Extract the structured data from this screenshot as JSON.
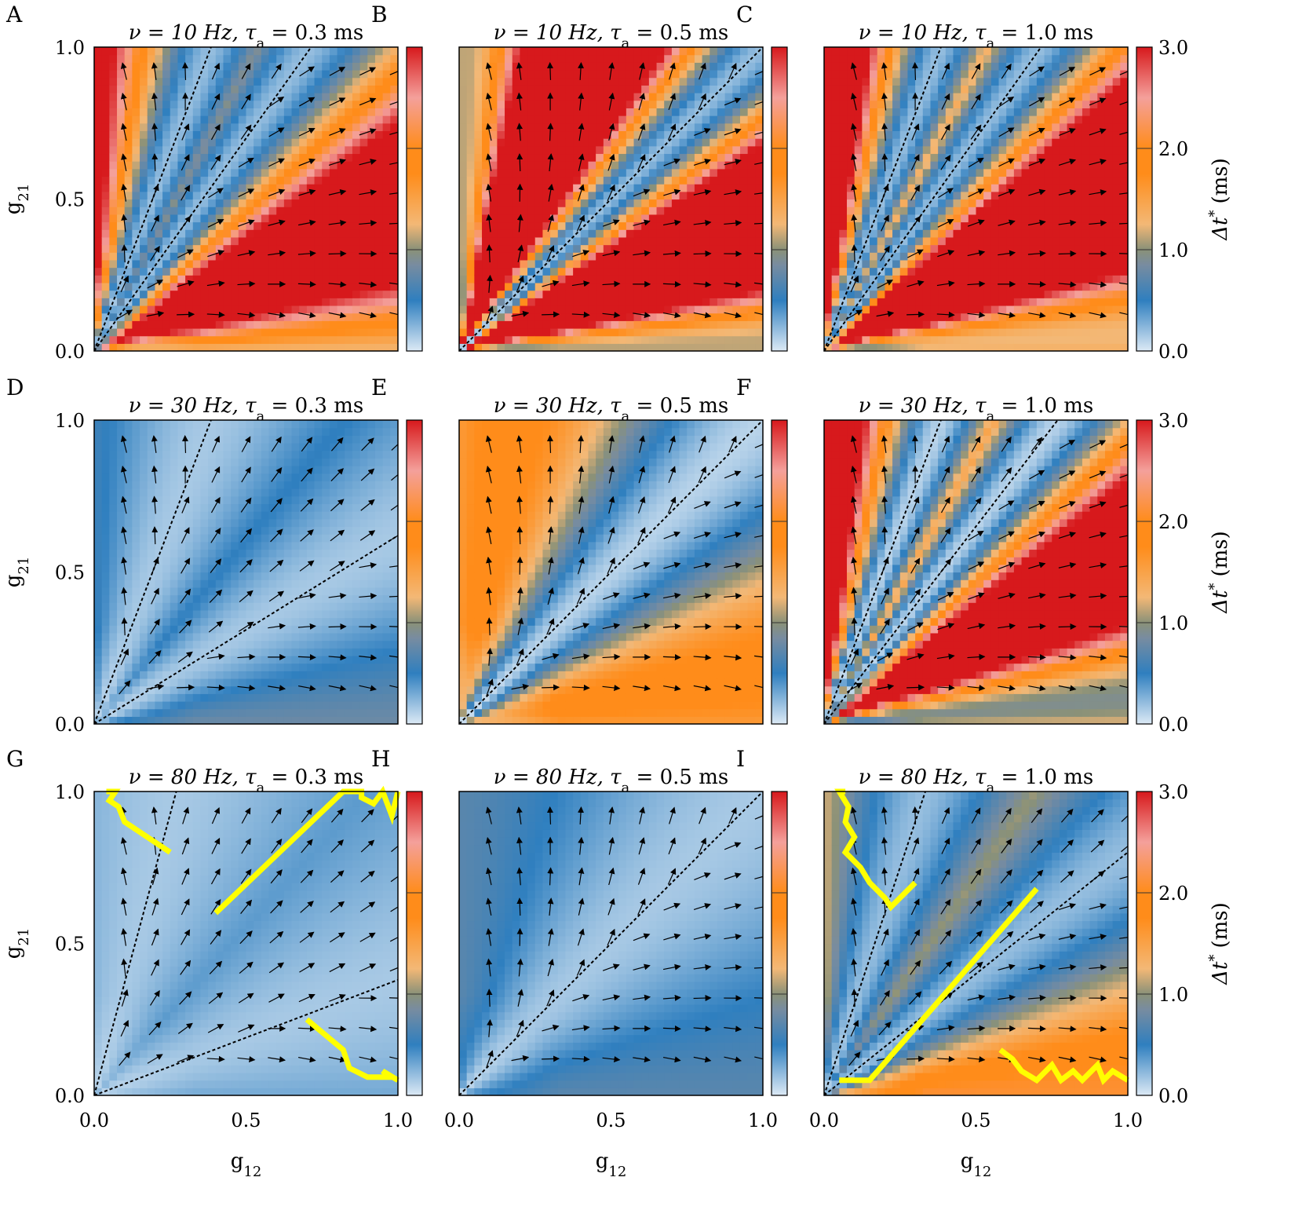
{
  "figure": {
    "x_axis_label": "g",
    "x_axis_label_sub": "12",
    "y_axis_label": "g",
    "y_axis_label_sub": "21",
    "colorbar_label": "Δt",
    "colorbar_label_sup": "*",
    "colorbar_unit": "(ms)",
    "colorbar_ticks": [
      "0.0",
      "1.0",
      "2.0",
      "3.0"
    ],
    "axis_ticks": [
      "0.0",
      "0.5",
      "1.0"
    ],
    "colors": {
      "deep_red": "#d7191c",
      "pink": "#f4a09b",
      "orange": "#ff8c1a",
      "tan": "#f3b876",
      "gray_olive": "#8a9178",
      "mid_blue": "#2f7fbf",
      "light_blue": "#dce9f5",
      "arrow": "#000000",
      "separatrix": "#000000",
      "trajectory": "#ffff00"
    }
  },
  "chart_data": [
    {
      "panel": "A",
      "nu": "ν = 10 Hz",
      "tau": "τa = 0.3 ms",
      "title_left": "ν = 10 Hz, τ",
      "title_sub": "a",
      "title_right": " = 0.3 ms",
      "type": "heatmap",
      "xlim": [
        0,
        1
      ],
      "ylim": [
        0,
        1
      ],
      "clim": [
        0,
        3
      ],
      "separatrix_slopes": [
        2.6,
        1.4
      ],
      "diagonal": false,
      "base": 2.5,
      "amp": 2.3,
      "period_deg": 30,
      "phase_deg": 0,
      "trajectories": []
    },
    {
      "panel": "B",
      "nu": "ν = 10 Hz",
      "tau": "τa = 0.5 ms",
      "title_left": "ν = 10 Hz, τ",
      "title_sub": "a",
      "title_right": " = 0.5 ms",
      "type": "heatmap",
      "xlim": [
        0,
        1
      ],
      "ylim": [
        0,
        1
      ],
      "clim": [
        0,
        3
      ],
      "separatrix_slopes": [
        1.0
      ],
      "diagonal": true,
      "base": 3.2,
      "amp": 3.0,
      "period_deg": 22,
      "phase_deg": 0,
      "trajectories": []
    },
    {
      "panel": "C",
      "nu": "ν = 10 Hz",
      "tau": "τa = 1.0 ms",
      "title_left": "ν = 10 Hz, τ",
      "title_sub": "a",
      "title_right": " = 1.0 ms",
      "type": "heatmap",
      "xlim": [
        0,
        1
      ],
      "ylim": [
        0,
        1
      ],
      "clim": [
        0,
        3
      ],
      "separatrix_slopes": [
        2.6,
        1.4
      ],
      "diagonal": false,
      "base": 3.2,
      "amp": 3.0,
      "period_deg": 26,
      "phase_deg": 0,
      "trajectories": []
    },
    {
      "panel": "D",
      "nu": "ν = 30 Hz",
      "tau": "τa = 0.3 ms",
      "title_left": "ν = 30 Hz, τ",
      "title_sub": "a",
      "title_right": " = 0.3 ms",
      "type": "heatmap",
      "xlim": [
        0,
        1
      ],
      "ylim": [
        0,
        1
      ],
      "clim": [
        0,
        3
      ],
      "separatrix_slopes": [
        2.6,
        0.62
      ],
      "diagonal": false,
      "base": 0.55,
      "amp": 0.4,
      "period_deg": 40,
      "phase_deg": 0,
      "trajectories": []
    },
    {
      "panel": "E",
      "nu": "ν = 30 Hz",
      "tau": "τa = 0.5 ms",
      "title_left": "ν = 30 Hz, τ",
      "title_sub": "a",
      "title_right": " = 0.5 ms",
      "type": "heatmap",
      "xlim": [
        0,
        1
      ],
      "ylim": [
        0,
        1
      ],
      "clim": [
        0,
        3
      ],
      "separatrix_slopes": [
        1.0
      ],
      "diagonal": true,
      "base": 1.1,
      "amp": 1.0,
      "period_deg": 36,
      "phase_deg": 0,
      "trajectories": []
    },
    {
      "panel": "F",
      "nu": "ν = 30 Hz",
      "tau": "τa = 1.0 ms",
      "title_left": "ν = 30 Hz, τ",
      "title_sub": "a",
      "title_right": " = 1.0 ms",
      "type": "heatmap",
      "xlim": [
        0,
        1
      ],
      "ylim": [
        0,
        1
      ],
      "clim": [
        0,
        3
      ],
      "separatrix_slopes": [
        2.6,
        1.3
      ],
      "diagonal": false,
      "base": 2.6,
      "amp": 2.5,
      "period_deg": 24,
      "phase_deg": 0,
      "trajectories": []
    },
    {
      "panel": "G",
      "nu": "ν = 80 Hz",
      "tau": "τa = 0.3 ms",
      "title_left": "ν = 80 Hz, τ",
      "title_sub": "a",
      "title_right": " = 0.3 ms",
      "type": "heatmap",
      "xlim": [
        0,
        1
      ],
      "ylim": [
        0,
        1
      ],
      "clim": [
        0,
        3
      ],
      "separatrix_slopes": [
        3.7,
        0.38
      ],
      "diagonal": false,
      "base": 0.4,
      "amp": 0.25,
      "period_deg": 60,
      "phase_deg": 0,
      "trajectories": [
        [
          [
            0.25,
            0.8
          ],
          [
            0.1,
            0.9
          ],
          [
            0.08,
            0.95
          ],
          [
            0.05,
            0.97
          ],
          [
            0.07,
            1.0
          ],
          [
            0.04,
            1.0
          ]
        ],
        [
          [
            0.4,
            0.6
          ],
          [
            0.82,
            1.0
          ],
          [
            0.88,
            1.0
          ],
          [
            0.88,
            0.98
          ],
          [
            0.92,
            0.96
          ],
          [
            0.95,
            1.0
          ],
          [
            0.98,
            0.92
          ],
          [
            1.0,
            1.0
          ]
        ],
        [
          [
            0.7,
            0.25
          ],
          [
            0.82,
            0.15
          ],
          [
            0.84,
            0.09
          ],
          [
            0.9,
            0.06
          ],
          [
            0.97,
            0.06
          ],
          [
            0.95,
            0.08
          ],
          [
            1.0,
            0.05
          ]
        ]
      ]
    },
    {
      "panel": "H",
      "nu": "ν = 80 Hz",
      "tau": "τa = 0.5 ms",
      "title_left": "ν = 80 Hz, τ",
      "title_sub": "a",
      "title_right": " = 0.5 ms",
      "type": "heatmap",
      "xlim": [
        0,
        1
      ],
      "ylim": [
        0,
        1
      ],
      "clim": [
        0,
        3
      ],
      "separatrix_slopes": [
        1.0
      ],
      "diagonal": true,
      "base": 0.5,
      "amp": 0.35,
      "period_deg": 55,
      "phase_deg": 0,
      "trajectories": []
    },
    {
      "panel": "I",
      "nu": "ν = 80 Hz",
      "tau": "τa = 1.0 ms",
      "title_left": "ν = 80 Hz, τ",
      "title_sub": "a",
      "title_right": " = 1.0 ms",
      "type": "heatmap",
      "xlim": [
        0,
        1
      ],
      "ylim": [
        0,
        1
      ],
      "clim": [
        0,
        3
      ],
      "separatrix_slopes": [
        3.0,
        0.8
      ],
      "diagonal": false,
      "base": 1.3,
      "amp": 1.1,
      "period_deg": 40,
      "phase_deg": 0,
      "trajectories": [
        [
          [
            0.07,
            1.0
          ],
          [
            0.05,
            1.0
          ],
          [
            0.08,
            0.95
          ],
          [
            0.07,
            0.9
          ],
          [
            0.1,
            0.85
          ],
          [
            0.07,
            0.8
          ],
          [
            0.12,
            0.75
          ],
          [
            0.15,
            0.7
          ],
          [
            0.2,
            0.65
          ],
          [
            0.22,
            0.62
          ],
          [
            0.3,
            0.7
          ]
        ],
        [
          [
            0.05,
            0.05
          ],
          [
            0.15,
            0.05
          ],
          [
            0.7,
            0.68
          ]
        ],
        [
          [
            0.58,
            0.15
          ],
          [
            0.62,
            0.12
          ],
          [
            0.65,
            0.08
          ],
          [
            0.7,
            0.05
          ],
          [
            0.75,
            0.1
          ],
          [
            0.78,
            0.05
          ],
          [
            0.82,
            0.08
          ],
          [
            0.85,
            0.05
          ],
          [
            0.9,
            0.1
          ],
          [
            0.92,
            0.05
          ],
          [
            0.95,
            0.08
          ],
          [
            1.0,
            0.05
          ]
        ]
      ]
    }
  ]
}
